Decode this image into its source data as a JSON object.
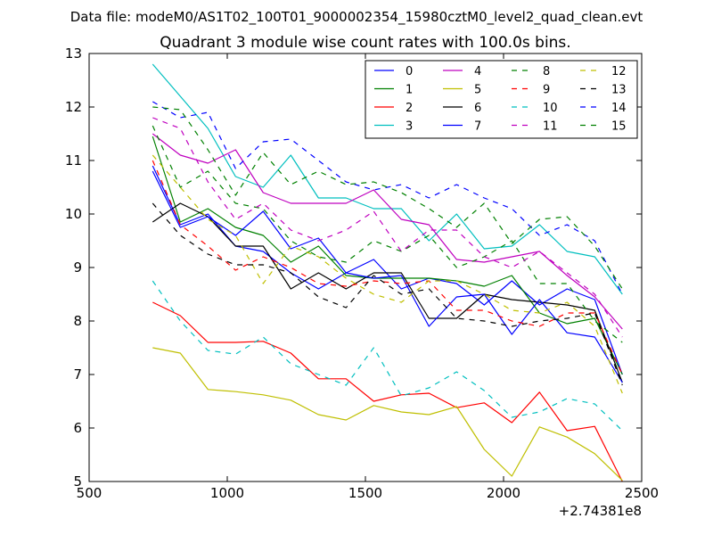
{
  "figure": {
    "suptitle": "Data file: modeM0/AS1T02_100T01_9000002354_15980cztM0_level2_quad_clean.evt"
  },
  "chart_data": {
    "type": "line",
    "title": "Quadrant 3 module wise count rates with 100.0s bins.",
    "xlabel": "",
    "ylabel": "",
    "x_offset_label": "+2.74381e8",
    "xlim": [
      500,
      2500
    ],
    "ylim": [
      5,
      13
    ],
    "x_ticks": [
      500,
      1000,
      1500,
      2000,
      2500
    ],
    "y_ticks": [
      5,
      6,
      7,
      8,
      9,
      10,
      11,
      12,
      13
    ],
    "grid": false,
    "legend": {
      "placement": "top-right",
      "columns": 4
    },
    "x": [
      730,
      830,
      930,
      1030,
      1130,
      1230,
      1330,
      1430,
      1530,
      1630,
      1730,
      1830,
      1930,
      2030,
      2130,
      2230,
      2330,
      2430
    ],
    "series": [
      {
        "name": "0",
        "color": "#0000ff",
        "dash": "solid",
        "values": [
          10.9,
          9.8,
          10.0,
          9.4,
          9.3,
          8.9,
          8.6,
          8.9,
          9.15,
          8.6,
          8.8,
          8.7,
          8.3,
          8.75,
          8.3,
          8.6,
          8.4,
          7.0
        ]
      },
      {
        "name": "1",
        "color": "#008000",
        "dash": "solid",
        "values": [
          11.45,
          9.85,
          10.1,
          9.75,
          9.6,
          9.1,
          9.4,
          8.85,
          8.8,
          8.8,
          8.8,
          8.75,
          8.65,
          8.85,
          8.15,
          7.95,
          8.05,
          7.0
        ]
      },
      {
        "name": "2",
        "color": "#ff0000",
        "dash": "solid",
        "values": [
          8.35,
          8.1,
          7.6,
          7.6,
          7.62,
          7.4,
          6.92,
          6.92,
          6.5,
          6.62,
          6.65,
          6.38,
          6.47,
          6.1,
          6.67,
          5.95,
          6.03,
          5.0
        ]
      },
      {
        "name": "3",
        "color": "#00bfbf",
        "dash": "solid",
        "values": [
          12.8,
          12.2,
          11.6,
          10.7,
          10.5,
          11.1,
          10.3,
          10.3,
          10.1,
          10.1,
          9.5,
          10.0,
          9.35,
          9.4,
          9.8,
          9.3,
          9.2,
          8.5
        ]
      },
      {
        "name": "4",
        "color": "#bf00bf",
        "dash": "solid",
        "values": [
          11.5,
          11.1,
          10.95,
          11.2,
          10.4,
          10.2,
          10.2,
          10.2,
          10.45,
          9.9,
          9.8,
          9.15,
          9.1,
          9.2,
          9.3,
          8.85,
          8.45,
          7.85
        ]
      },
      {
        "name": "5",
        "color": "#bfbf00",
        "dash": "solid",
        "values": [
          7.5,
          7.4,
          6.72,
          6.68,
          6.62,
          6.52,
          6.25,
          6.15,
          6.42,
          6.3,
          6.25,
          6.4,
          5.6,
          5.1,
          6.02,
          5.83,
          5.52,
          5.02
        ]
      },
      {
        "name": "6",
        "color": "#000000",
        "dash": "solid",
        "values": [
          9.85,
          10.2,
          9.95,
          9.4,
          9.4,
          8.6,
          8.9,
          8.6,
          8.9,
          8.9,
          8.05,
          8.05,
          8.5,
          8.4,
          8.35,
          8.3,
          8.2,
          6.85
        ]
      },
      {
        "name": "7",
        "color": "#0000ff",
        "dash": "solid",
        "values": [
          10.8,
          9.75,
          9.95,
          9.6,
          10.05,
          9.35,
          9.55,
          8.9,
          8.8,
          8.85,
          7.9,
          8.45,
          8.5,
          7.75,
          8.4,
          7.78,
          7.7,
          6.85
        ]
      },
      {
        "name": "8",
        "color": "#008000",
        "dash": "dashed",
        "values": [
          11.65,
          10.5,
          10.8,
          10.2,
          10.1,
          9.5,
          9.2,
          9.1,
          9.5,
          9.3,
          9.6,
          9.0,
          9.2,
          9.5,
          8.7,
          8.7,
          8.0,
          7.6
        ]
      },
      {
        "name": "9",
        "color": "#ff0000",
        "dash": "dashed",
        "values": [
          11.0,
          9.8,
          9.4,
          8.95,
          9.2,
          9.0,
          8.7,
          8.65,
          8.75,
          8.7,
          8.75,
          8.2,
          8.2,
          8.0,
          7.9,
          8.15,
          8.15,
          7.0
        ]
      },
      {
        "name": "10",
        "color": "#00bfbf",
        "dash": "dashed",
        "values": [
          8.75,
          8.0,
          7.45,
          7.38,
          7.7,
          7.2,
          7.0,
          6.8,
          7.5,
          6.6,
          6.75,
          7.05,
          6.7,
          6.2,
          6.3,
          6.55,
          6.45,
          5.95
        ]
      },
      {
        "name": "11",
        "color": "#bf00bf",
        "dash": "dashed",
        "values": [
          11.8,
          11.6,
          10.6,
          9.9,
          10.2,
          9.7,
          9.5,
          9.7,
          10.05,
          9.3,
          9.7,
          9.7,
          9.2,
          9.0,
          9.3,
          8.9,
          8.5,
          7.7
        ]
      },
      {
        "name": "12",
        "color": "#bfbf00",
        "dash": "dashed",
        "values": [
          11.1,
          10.5,
          9.9,
          9.6,
          8.7,
          9.4,
          9.2,
          8.8,
          8.5,
          8.35,
          8.75,
          8.75,
          8.5,
          8.2,
          8.15,
          8.35,
          7.9,
          6.65
        ]
      },
      {
        "name": "13",
        "color": "#000000",
        "dash": "dashed",
        "values": [
          10.2,
          9.6,
          9.25,
          9.05,
          9.05,
          8.9,
          8.45,
          8.25,
          8.85,
          8.5,
          8.6,
          8.05,
          8.0,
          7.9,
          8.0,
          8.05,
          8.15,
          6.8
        ]
      },
      {
        "name": "14",
        "color": "#0000ff",
        "dash": "dashed",
        "values": [
          12.1,
          11.8,
          11.9,
          10.85,
          11.35,
          11.4,
          11.0,
          10.6,
          10.45,
          10.55,
          10.3,
          10.55,
          10.3,
          10.1,
          9.6,
          9.8,
          9.5,
          8.5
        ]
      },
      {
        "name": "15",
        "color": "#008000",
        "dash": "dashed",
        "values": [
          12.0,
          11.95,
          11.2,
          10.35,
          11.15,
          10.55,
          10.8,
          10.55,
          10.6,
          10.4,
          10.1,
          9.75,
          10.2,
          9.45,
          9.9,
          9.95,
          9.4,
          8.6
        ]
      }
    ]
  }
}
